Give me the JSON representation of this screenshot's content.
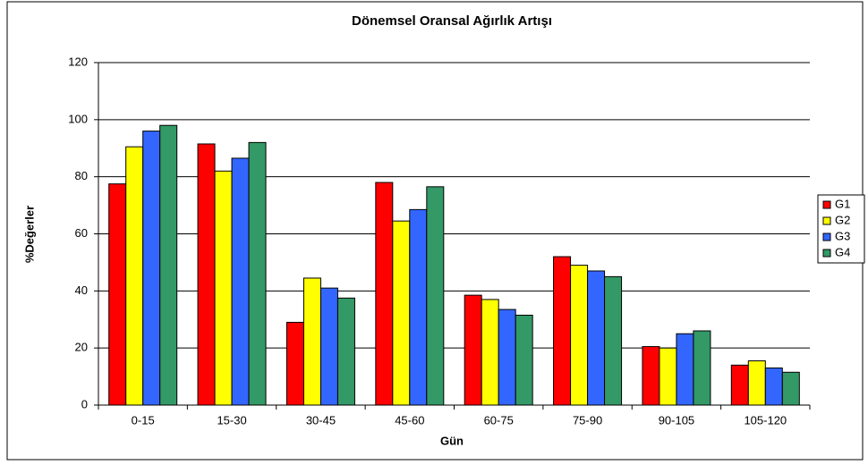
{
  "chart_data": {
    "type": "bar",
    "title": "Dönemsel Oransal Ağırlık Artışı",
    "x_label": "Gün",
    "y_label": "%Değerler",
    "categories": [
      "0-15",
      "15-30",
      "30-45",
      "45-60",
      "60-75",
      "75-90",
      "90-105",
      "105-120"
    ],
    "series": [
      {
        "name": "G1",
        "color": "#ff0000",
        "values": [
          77.5,
          91.5,
          29,
          78,
          38.5,
          52,
          20.5,
          14
        ]
      },
      {
        "name": "G2",
        "color": "#ffff00",
        "values": [
          90.5,
          82,
          44.5,
          64.5,
          37,
          49,
          20,
          15.5
        ]
      },
      {
        "name": "G3",
        "color": "#3366ff",
        "values": [
          96,
          86.5,
          41,
          68.5,
          33.5,
          47,
          25,
          13
        ]
      },
      {
        "name": "G4",
        "color": "#339966",
        "values": [
          98,
          92,
          37.5,
          76.5,
          31.5,
          45,
          26,
          11.5
        ]
      }
    ],
    "ylim": [
      0,
      120
    ],
    "yticks": [
      0,
      20,
      40,
      60,
      80,
      100,
      120
    ],
    "grid": true,
    "legend": "right"
  }
}
